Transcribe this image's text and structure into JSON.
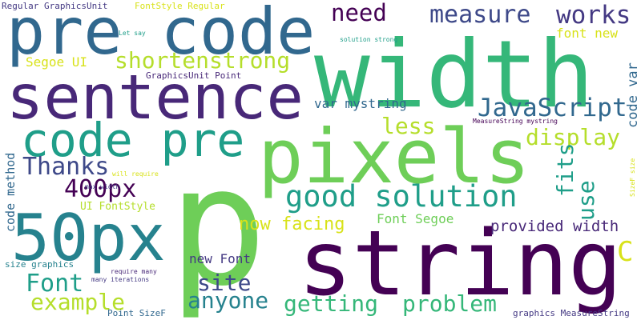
{
  "palette": {
    "purple": "#440154",
    "indigo": "#482878",
    "violet": "#443983",
    "blue": "#3e4989",
    "steel": "#31688e",
    "teal": "#26828e",
    "sea": "#1f9e89",
    "green": "#35b779",
    "lime": "#6ece58",
    "yellowgreen": "#b5de2b",
    "yellow": "#d8e219"
  },
  "words": [
    {
      "text": "p",
      "color": "lime"
    },
    {
      "text": "string",
      "color": "purple"
    },
    {
      "text": "width",
      "color": "green"
    },
    {
      "text": "pixels",
      "color": "lime"
    },
    {
      "text": "pre code",
      "color": "steel"
    },
    {
      "text": "sentence",
      "color": "indigo"
    },
    {
      "text": "code pre",
      "color": "sea"
    },
    {
      "text": "50px",
      "color": "teal"
    },
    {
      "text": "good solution",
      "color": "sea"
    },
    {
      "text": "measure",
      "color": "blue"
    },
    {
      "text": "works",
      "color": "violet"
    },
    {
      "text": "need",
      "color": "purple"
    },
    {
      "text": "shortenstrong",
      "color": "yellowgreen"
    },
    {
      "text": "JavaScript",
      "color": "steel"
    },
    {
      "text": "Thanks",
      "color": "blue"
    },
    {
      "text": "400px",
      "color": "purple"
    },
    {
      "text": "display",
      "color": "yellowgreen"
    },
    {
      "text": "less",
      "color": "yellowgreen"
    },
    {
      "text": "fits",
      "color": "sea"
    },
    {
      "text": "use",
      "color": "sea"
    },
    {
      "text": "Font",
      "color": "sea"
    },
    {
      "text": "example",
      "color": "yellowgreen"
    },
    {
      "text": "site",
      "color": "blue"
    },
    {
      "text": "anyone",
      "color": "teal"
    },
    {
      "text": "getting",
      "color": "green"
    },
    {
      "text": "problem",
      "color": "green"
    },
    {
      "text": "now facing",
      "color": "yellow"
    },
    {
      "text": "provided width",
      "color": "indigo"
    },
    {
      "text": "C",
      "color": "yellow"
    },
    {
      "text": "font new",
      "color": "yellow"
    },
    {
      "text": "code var",
      "color": "steel"
    },
    {
      "text": "var mystring",
      "color": "steel"
    },
    {
      "text": "Segoe UI",
      "color": "yellow"
    },
    {
      "text": "new Font",
      "color": "violet"
    },
    {
      "text": "Font Segoe",
      "color": "lime"
    },
    {
      "text": "code method",
      "color": "steel"
    },
    {
      "text": "UI FontStyle",
      "color": "yellowgreen"
    },
    {
      "text": "Regular GraphicsUnit",
      "color": "violet"
    },
    {
      "text": "FontStyle Regular",
      "color": "yellow"
    },
    {
      "text": "GraphicsUnit Point",
      "color": "indigo"
    },
    {
      "text": "Let say",
      "color": "sea"
    },
    {
      "text": "solution strong",
      "color": "sea"
    },
    {
      "text": "MeasureString mystring",
      "color": "purple"
    },
    {
      "text": "SizeF size",
      "color": "yellow"
    },
    {
      "text": "will require",
      "color": "yellow"
    },
    {
      "text": "max width",
      "color": "violet"
    },
    {
      "text": "size graphics",
      "color": "teal"
    },
    {
      "text": "require many",
      "color": "indigo"
    },
    {
      "text": "many iterations",
      "color": "violet"
    },
    {
      "text": "Point SizeF",
      "color": "steel"
    },
    {
      "text": "graphics MeasureString",
      "color": "violet"
    }
  ]
}
